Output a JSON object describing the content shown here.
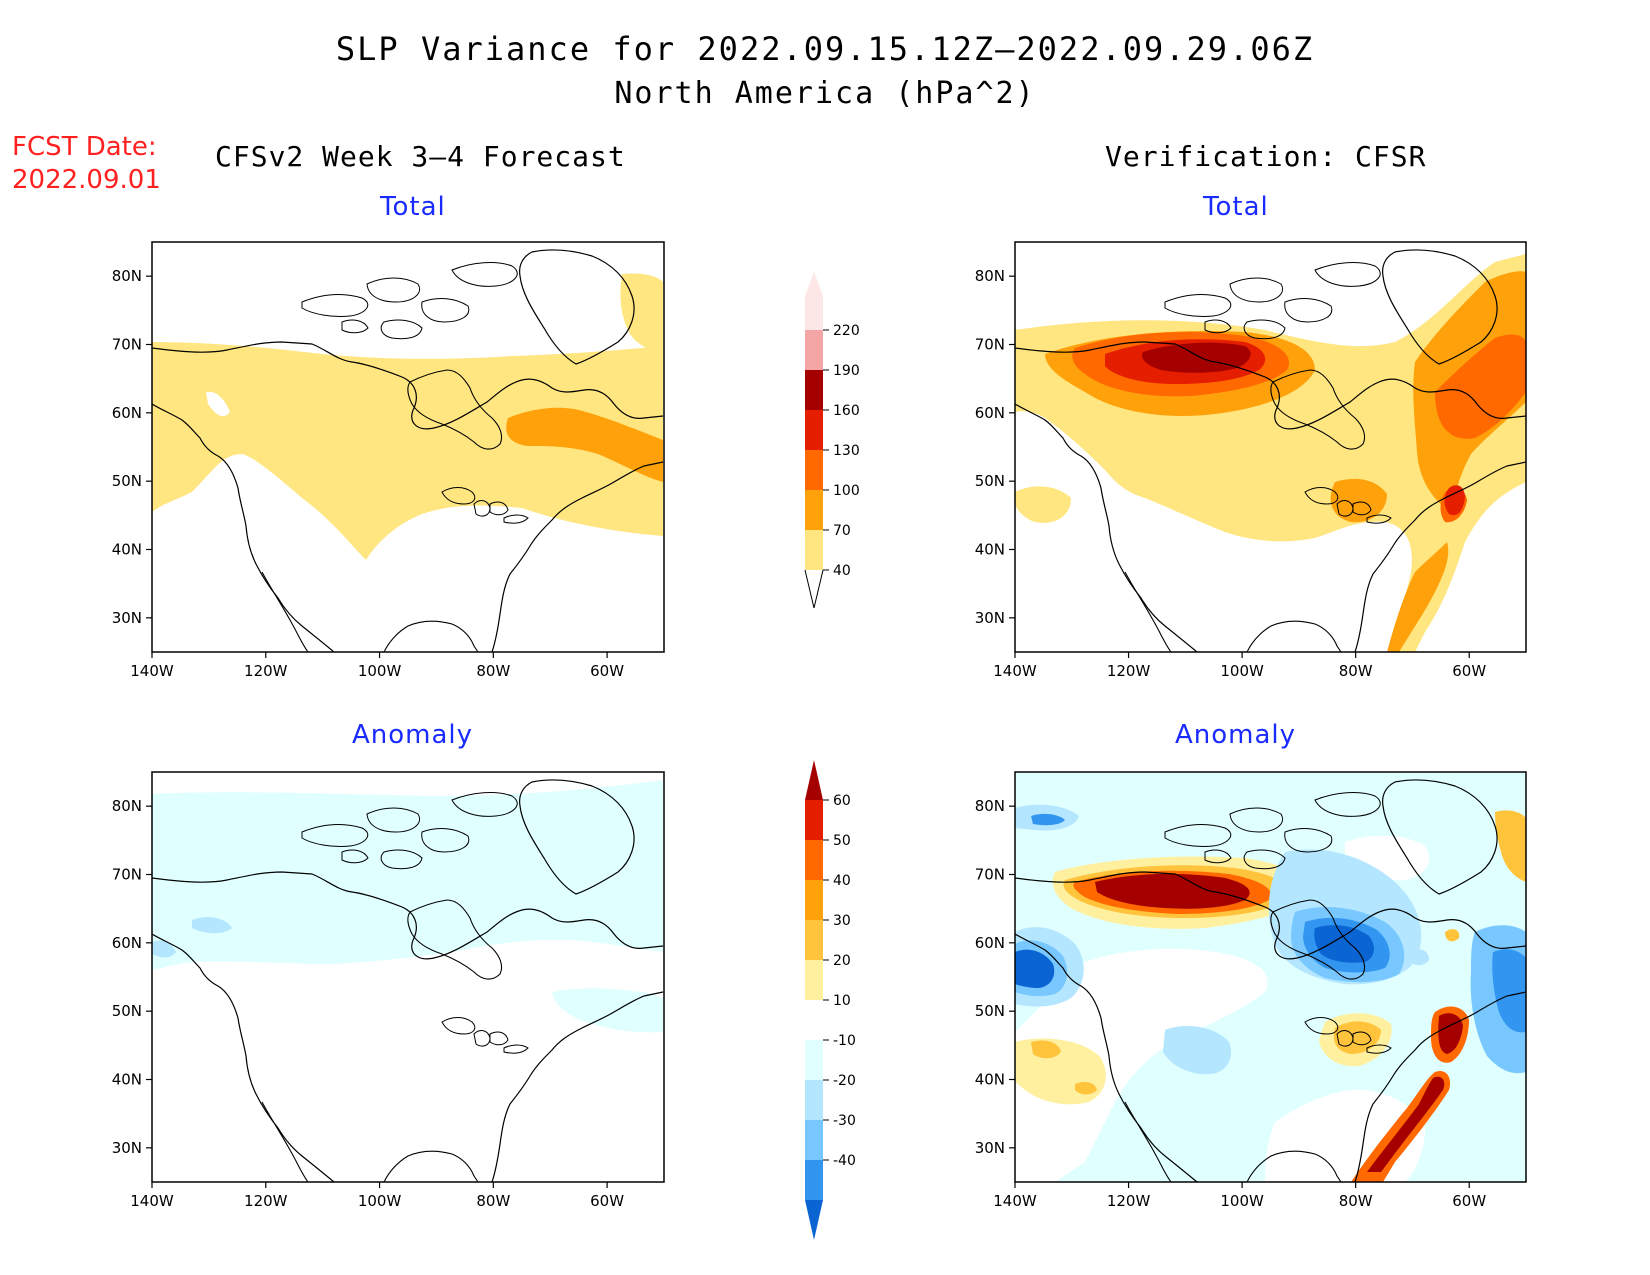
{
  "header": {
    "title": "SLP Variance for 2022.09.15.12Z–2022.09.29.06Z",
    "subtitle": "North America (hPa^2)"
  },
  "forecast_date": {
    "label": "FCST Date:",
    "value": "2022.09.01"
  },
  "columns": {
    "left": "CFSv2 Week 3–4 Forecast",
    "right": "Verification: CFSR"
  },
  "panels": {
    "top_left": {
      "title": "Total"
    },
    "top_right": {
      "title": "Total"
    },
    "bottom_left": {
      "title": "Anomaly"
    },
    "bottom_right": {
      "title": "Anomaly"
    }
  },
  "axes": {
    "lat_ticks": [
      "80N",
      "70N",
      "60N",
      "50N",
      "40N",
      "30N"
    ],
    "lon_ticks": [
      "140W",
      "120W",
      "100W",
      "80W",
      "60W"
    ]
  },
  "total_colorbar": {
    "levels": [
      "40",
      "70",
      "100",
      "130",
      "160",
      "190",
      "220"
    ],
    "colors": [
      "#ffe680",
      "#ffa10a",
      "#ff6900",
      "#e61e00",
      "#a50000",
      "#f4a6a6",
      "#fde6e6"
    ]
  },
  "anomaly_colorbar": {
    "levels": [
      "60",
      "50",
      "40",
      "30",
      "20",
      "10",
      "-10",
      "-20",
      "-30",
      "-40"
    ],
    "colors": [
      "#a50000",
      "#e61e00",
      "#ff6900",
      "#ffa10a",
      "#ffc43c",
      "#fff0a0",
      "#ffffff",
      "#e0ffff",
      "#b4e6ff",
      "#78c8ff",
      "#3296f0",
      "#0a64d2"
    ]
  }
}
